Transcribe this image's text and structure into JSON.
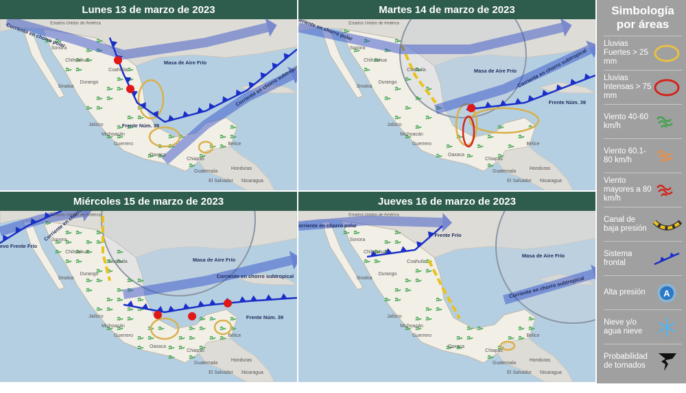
{
  "panels": [
    {
      "title": "Lunes 13 de marzo de 2023",
      "places": [
        "Estados Unidos de América",
        "Sonora",
        "Chihuahua",
        "Coahuila",
        "Durango",
        "Sinaloa",
        "Jalisco",
        "Michoacán",
        "Guerrero",
        "Oaxaca",
        "Chiapas",
        "Belice",
        "Guatemala",
        "Honduras",
        "El Salvador",
        "Nicaragua"
      ],
      "features": [
        "Masa de Aire Frío",
        "Corriente en chorro polar",
        "Corriente en chorro subtropical",
        "Frente Núm. 39"
      ]
    },
    {
      "title": "Martes 14 de marzo de 2023",
      "places": [
        "Estados Unidos de América",
        "Sonora",
        "Chihuahua",
        "Coahuila",
        "Durango",
        "Sinaloa",
        "Jalisco",
        "Michoacán",
        "Guerrero",
        "Oaxaca",
        "Chiapas",
        "Belice",
        "Guatemala",
        "Honduras",
        "El Salvador",
        "Nicaragua"
      ],
      "features": [
        "Corriente en chorro polar",
        "Masa de Aire Frío",
        "Corriente en chorro subtropical",
        "Frente Núm. 39"
      ]
    },
    {
      "title": "Miércoles 15 de marzo de 2023",
      "places": [
        "Estados Unidos de América",
        "Sonora",
        "Chihuahua",
        "Coahuila",
        "Durango",
        "Sinaloa",
        "Jalisco",
        "Michoacán",
        "Guerrero",
        "Oaxaca",
        "Chiapas",
        "Belice",
        "Guatemala",
        "Honduras",
        "El Salvador",
        "Nicaragua"
      ],
      "features": [
        "Nuevo Frente Frío",
        "Corriente en chorro polar",
        "Masa de Aire Frío",
        "Corriente en chorro subtropical",
        "Frente Núm. 39"
      ]
    },
    {
      "title": "Jueves 16 de marzo de 2023",
      "places": [
        "Estados Unidos de América",
        "Sonora",
        "Chihuahua",
        "Coahuila",
        "Durango",
        "Sinaloa",
        "Jalisco",
        "Michoacán",
        "Guerrero",
        "Oaxaca",
        "Chiapas",
        "Belice",
        "Guatemala",
        "Honduras",
        "El Salvador",
        "Nicaragua"
      ],
      "features": [
        "Corriente en chorro polar",
        "Frente Frío",
        "Masa de Aire Frío",
        "Corriente en chorro subtropical"
      ]
    }
  ],
  "legend": {
    "title": "Simbología por áreas",
    "items": [
      "Lluvias Fuertes > 25 mm",
      "Lluvias Intensas > 75 mm",
      "Viento 40-60 km/h",
      "Viento 60.1-80 km/h",
      "Viento mayores a 80 km/h",
      "Canal de baja presión",
      "Sistema frontal",
      "Alta presión",
      "Nieve y/o agua nieve",
      "Probabilidad de tornados"
    ],
    "high_pressure_symbol": "A"
  }
}
